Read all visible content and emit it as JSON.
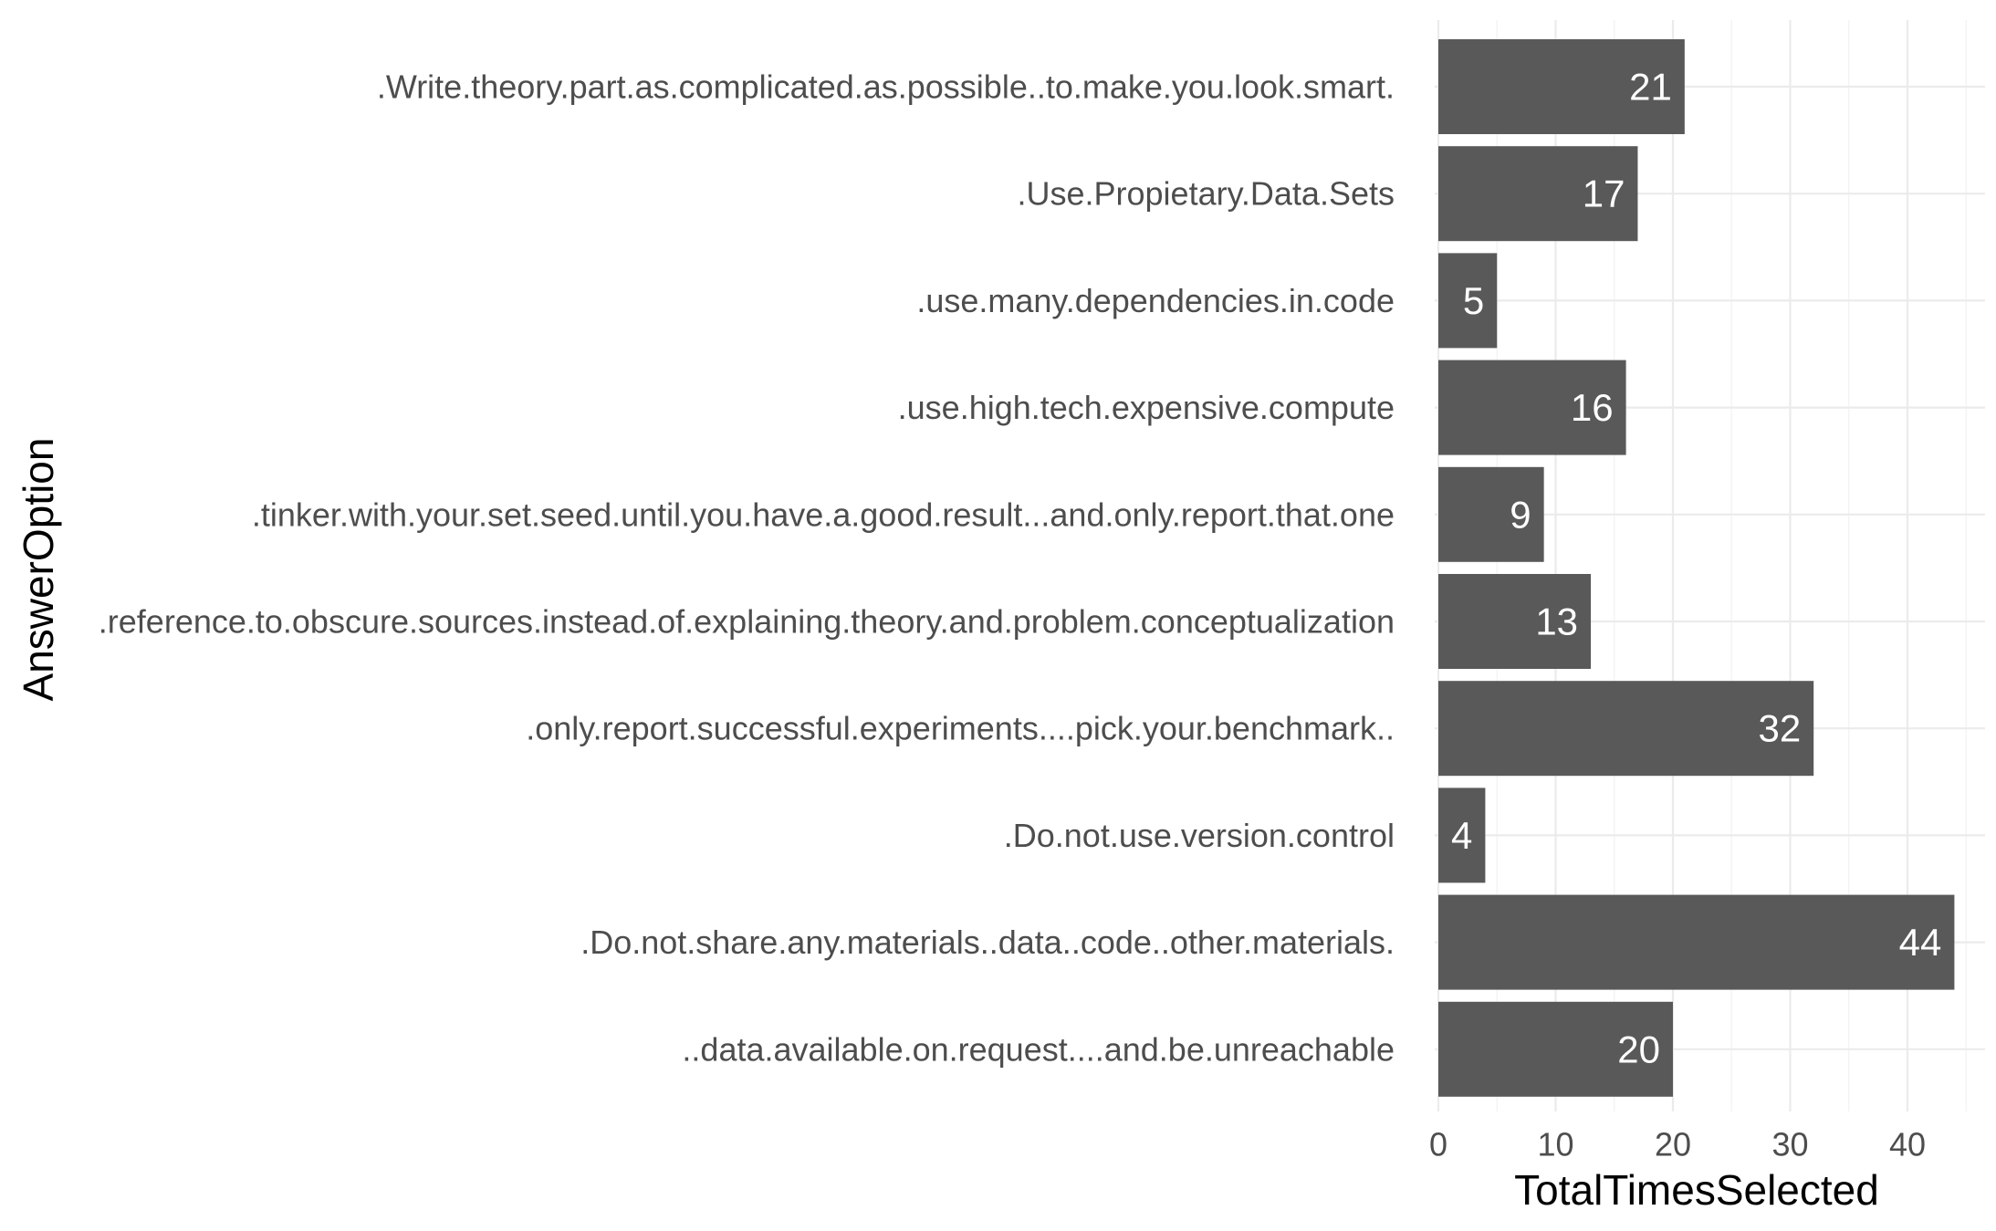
{
  "chart_data": {
    "type": "bar",
    "orientation": "horizontal",
    "xlabel": "TotalTimesSelected",
    "ylabel": "AnswerOption",
    "xlim": [
      0,
      46
    ],
    "x_ticks": [
      0,
      10,
      20,
      30,
      40
    ],
    "grid": true,
    "bar_color": "#595959",
    "label_color": "#ffffff",
    "categories": [
      ".Write.theory.part.as.complicated.as.possible..to.make.you.look.smart.",
      ".Use.Propietary.Data.Sets",
      ".use.many.dependencies.in.code",
      ".use.high.tech.expensive.compute",
      ".tinker.with.your.set.seed.until.you.have.a.good.result...and.only.report.that.one",
      ".reference.to.obscure.sources.instead.of.explaining.theory.and.problem.conceptualization",
      ".only.report.successful.experiments....pick.your.benchmark..",
      ".Do.not.use.version.control",
      ".Do.not.share.any.materials..data..code..other.materials.",
      "..data.available.on.request....and.be.unreachable"
    ],
    "values": [
      21,
      17,
      5,
      16,
      9,
      13,
      32,
      4,
      44,
      20
    ]
  }
}
